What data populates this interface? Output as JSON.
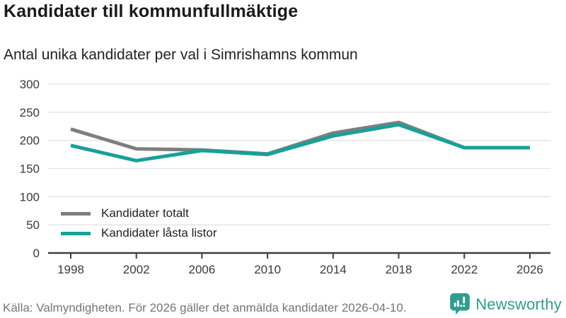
{
  "header": {
    "title": "Kandidater till kommunfullmäktige",
    "subtitle": "Antal unika kandidater per val i Simrishamns kommun"
  },
  "chart_data": {
    "type": "line",
    "categories": [
      "1998",
      "2002",
      "2006",
      "2010",
      "2014",
      "2018",
      "2022",
      "2026"
    ],
    "series": [
      {
        "name": "Kandidater totalt",
        "color": "#7e7e7e",
        "values": [
          220,
          185,
          183,
          176,
          213,
          232,
          187,
          187
        ]
      },
      {
        "name": "Kandidater låsta listor",
        "color": "#16a19a",
        "values": [
          191,
          164,
          182,
          175,
          208,
          228,
          187,
          187
        ]
      }
    ],
    "title": "Kandidater till kommunfullmäktige",
    "subtitle": "Antal unika kandidater per val i Simrishamns kommun",
    "xlabel": "",
    "ylabel": "",
    "ylim": [
      0,
      300
    ],
    "y_ticks": [
      0,
      50,
      100,
      150,
      200,
      250,
      300
    ],
    "grid": true,
    "gridline_color": "#e3e3e3",
    "axis_color": "#3f3f3f",
    "legend_position": "inside-bottom-left"
  },
  "footer": {
    "source": "Källa: Valmyndigheten. För 2026 gäller det anmälda kandidater 2026-04-10.",
    "brand_name": "Newsworthy",
    "brand_color": "#2f9d90"
  }
}
